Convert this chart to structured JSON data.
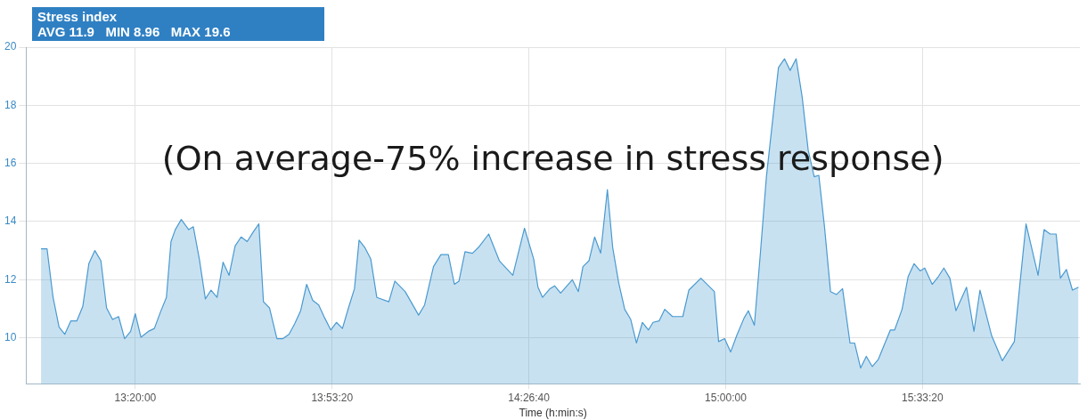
{
  "chart_data": {
    "type": "area",
    "title": "Stress index",
    "subtitle": "AVG 11.9   MIN 8.96   MAX 19.6",
    "xlabel": "Time (h:min:s)",
    "annotations": [
      "(On average-75% increase in stress response)"
    ],
    "xlim": [
      13.025,
      16.0
    ],
    "xticks": [
      {
        "value": 13.3333,
        "label": "13:20:00"
      },
      {
        "value": 13.8889,
        "label": "13:53:20"
      },
      {
        "value": 14.4444,
        "label": "14:26:40"
      },
      {
        "value": 15,
        "label": "15:00:00"
      },
      {
        "value": 15.5556,
        "label": "15:33:20"
      }
    ],
    "ylim": [
      8.42,
      20
    ],
    "yticks": [
      10,
      12,
      14,
      16,
      18,
      20
    ],
    "grid": true,
    "legend": false,
    "marker": "none",
    "line_style": "solid",
    "series": [
      {
        "color": "#4a9ad0",
        "x": [
          13.067,
          13.084,
          13.101,
          13.118,
          13.134,
          13.151,
          13.168,
          13.185,
          13.202,
          13.219,
          13.236,
          13.252,
          13.269,
          13.286,
          13.303,
          13.32,
          13.333,
          13.349,
          13.37,
          13.387,
          13.404,
          13.421,
          13.434,
          13.446,
          13.463,
          13.484,
          13.497,
          13.514,
          13.531,
          13.547,
          13.564,
          13.581,
          13.598,
          13.615,
          13.632,
          13.649,
          13.665,
          13.682,
          13.695,
          13.712,
          13.733,
          13.75,
          13.767,
          13.783,
          13.8,
          13.817,
          13.834,
          13.851,
          13.868,
          13.885,
          13.901,
          13.918,
          13.935,
          13.952,
          13.965,
          13.981,
          13.998,
          14.015,
          14.049,
          14.066,
          14.095,
          14.133,
          14.15,
          14.175,
          14.196,
          14.217,
          14.234,
          14.247,
          14.264,
          14.285,
          14.302,
          14.331,
          14.361,
          14.399,
          14.432,
          14.458,
          14.47,
          14.483,
          14.504,
          14.517,
          14.534,
          14.567,
          14.584,
          14.597,
          14.614,
          14.63,
          14.647,
          14.666,
          14.681,
          14.698,
          14.715,
          14.732,
          14.748,
          14.765,
          14.782,
          14.795,
          14.812,
          14.828,
          14.85,
          14.879,
          14.896,
          14.93,
          14.968,
          14.98,
          14.997,
          15.014,
          15.031,
          15.052,
          15.064,
          15.081,
          15.098,
          15.115,
          15.149,
          15.166,
          15.182,
          15.199,
          15.216,
          15.233,
          15.25,
          15.263,
          15.279,
          15.296,
          15.313,
          15.33,
          15.351,
          15.364,
          15.381,
          15.397,
          15.414,
          15.431,
          15.465,
          15.477,
          15.498,
          15.515,
          15.532,
          15.549,
          15.562,
          15.583,
          15.6,
          15.616,
          15.633,
          15.65,
          15.68,
          15.701,
          15.718,
          15.751,
          15.781,
          15.815,
          15.831,
          15.848,
          15.882,
          15.899,
          15.916,
          15.933,
          15.945,
          15.962,
          15.979,
          15.996
        ],
        "values": [
          13.06,
          13.06,
          11.39,
          10.37,
          10.12,
          10.58,
          10.58,
          11.08,
          12.55,
          13.0,
          12.65,
          11.03,
          10.63,
          10.73,
          9.97,
          10.22,
          10.83,
          10.02,
          10.22,
          10.32,
          10.88,
          11.39,
          13.31,
          13.72,
          14.07,
          13.72,
          13.82,
          12.71,
          11.34,
          11.64,
          11.39,
          12.6,
          12.15,
          13.16,
          13.47,
          13.31,
          13.62,
          13.92,
          11.24,
          11.03,
          9.97,
          9.97,
          10.12,
          10.48,
          10.93,
          11.84,
          11.29,
          11.13,
          10.68,
          10.27,
          10.53,
          10.32,
          11.03,
          11.69,
          13.36,
          13.11,
          12.71,
          11.39,
          11.24,
          11.95,
          11.59,
          10.78,
          11.13,
          12.45,
          12.86,
          12.86,
          11.84,
          11.95,
          12.96,
          12.91,
          13.11,
          13.57,
          12.65,
          12.15,
          13.77,
          12.71,
          11.74,
          11.39,
          11.69,
          11.79,
          11.54,
          12.0,
          11.59,
          12.45,
          12.65,
          13.47,
          12.91,
          15.1,
          13.11,
          11.89,
          10.98,
          10.63,
          9.82,
          10.53,
          10.27,
          10.53,
          10.58,
          10.98,
          10.73,
          10.73,
          11.64,
          12.05,
          11.59,
          9.87,
          9.97,
          9.51,
          10.07,
          10.68,
          10.93,
          10.43,
          12.91,
          15.54,
          19.3,
          19.6,
          19.2,
          19.6,
          18.28,
          16.45,
          15.54,
          15.59,
          13.82,
          11.59,
          11.49,
          11.69,
          9.82,
          9.82,
          8.96,
          9.36,
          9.01,
          9.26,
          10.27,
          10.27,
          10.98,
          12.1,
          12.55,
          12.3,
          12.4,
          11.84,
          12.1,
          12.4,
          12.05,
          10.93,
          11.74,
          10.22,
          11.64,
          10.07,
          9.21,
          9.87,
          11.89,
          13.92,
          12.15,
          13.72,
          13.57,
          13.57,
          12.05,
          12.35,
          11.64,
          11.74
        ]
      }
    ]
  }
}
